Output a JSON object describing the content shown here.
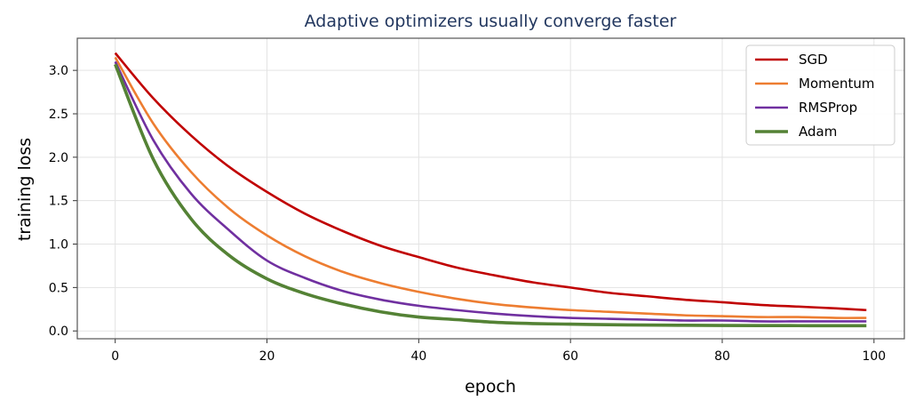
{
  "chart_data": {
    "type": "line",
    "title": "Adaptive optimizers usually converge faster",
    "xlabel": "epoch",
    "ylabel": "training loss",
    "xlim": [
      -5,
      104
    ],
    "ylim": [
      -0.09,
      3.37
    ],
    "xticks": [
      0,
      20,
      40,
      60,
      80,
      100
    ],
    "yticks": [
      0.0,
      0.5,
      1.0,
      1.5,
      2.0,
      2.5,
      3.0
    ],
    "xtick_labels": [
      "0",
      "20",
      "40",
      "60",
      "80",
      "100"
    ],
    "ytick_labels": [
      "0.0",
      "0.5",
      "1.0",
      "1.5",
      "2.0",
      "2.5",
      "3.0"
    ],
    "grid": true,
    "legend_position": "top-right",
    "x": [
      0,
      5,
      10,
      15,
      20,
      25,
      30,
      35,
      40,
      45,
      50,
      55,
      60,
      65,
      70,
      75,
      80,
      85,
      90,
      95,
      99
    ],
    "series": [
      {
        "name": "SGD",
        "color": "#c00000",
        "line_width": "normal",
        "values": [
          3.2,
          2.68,
          2.25,
          1.89,
          1.6,
          1.35,
          1.15,
          0.98,
          0.85,
          0.73,
          0.64,
          0.56,
          0.5,
          0.44,
          0.4,
          0.36,
          0.33,
          0.3,
          0.28,
          0.26,
          0.24
        ]
      },
      {
        "name": "Momentum",
        "color": "#ed7d31",
        "line_width": "normal",
        "values": [
          3.15,
          2.39,
          1.83,
          1.41,
          1.1,
          0.86,
          0.68,
          0.55,
          0.45,
          0.37,
          0.31,
          0.27,
          0.24,
          0.22,
          0.2,
          0.18,
          0.17,
          0.16,
          0.16,
          0.15,
          0.15
        ]
      },
      {
        "name": "RMSProp",
        "color": "#7030a0",
        "line_width": "normal",
        "values": [
          3.1,
          2.2,
          1.58,
          1.16,
          0.81,
          0.61,
          0.46,
          0.36,
          0.29,
          0.24,
          0.2,
          0.17,
          0.15,
          0.14,
          0.13,
          0.12,
          0.12,
          0.11,
          0.11,
          0.11,
          0.11
        ]
      },
      {
        "name": "Adam",
        "color": "#548235",
        "line_width": "thick",
        "values": [
          3.07,
          1.98,
          1.29,
          0.87,
          0.6,
          0.43,
          0.31,
          0.22,
          0.16,
          0.13,
          0.1,
          0.085,
          0.078,
          0.072,
          0.068,
          0.065,
          0.063,
          0.062,
          0.061,
          0.06,
          0.06
        ]
      }
    ]
  }
}
